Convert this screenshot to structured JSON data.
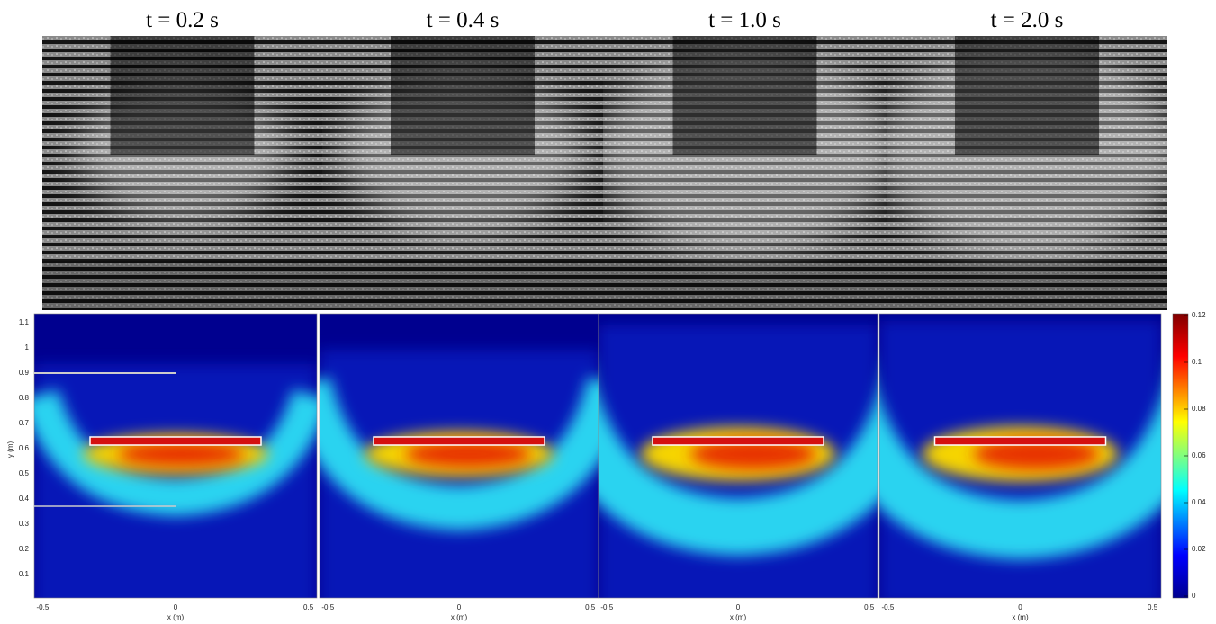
{
  "titles": [
    "t = 0.2 s",
    "t = 0.4 s",
    "t = 1.0 s",
    "t = 2.0 s"
  ],
  "heatmaps": {
    "y_axis_label": "y (m)",
    "y_ticks": [
      "0.1",
      "0.2",
      "0.3",
      "0.4",
      "0.5",
      "0.6",
      "0.7",
      "0.8",
      "0.9",
      "1",
      "1.1"
    ],
    "x_axis_label": "x (m)",
    "x_ticks": [
      "-0.5",
      "0",
      "0.5"
    ]
  },
  "colorbar": {
    "ticks": [
      "0",
      "0.02",
      "0.04",
      "0.06",
      "0.08",
      "0.1",
      "0.12"
    ]
  }
}
